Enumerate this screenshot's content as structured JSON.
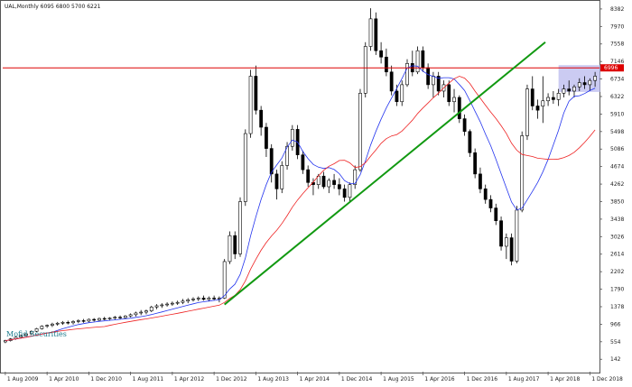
{
  "title": "UAL,Monthly  6095 6800 5700 6221",
  "brand": "Mofid Securities",
  "colors": {
    "bull": "#ffffff",
    "bear": "#000000",
    "wick": "#000000",
    "ma_blue": "#2233ee",
    "ma_red": "#ee2222",
    "trend": "#119911",
    "resistance": "#dd0000",
    "zone": "#b9b9ee",
    "brand": "#1a7a8c"
  },
  "chart_data": {
    "type": "candlestick",
    "y_ticks": [
      142,
      554,
      966,
      1378,
      1790,
      2202,
      2614,
      3026,
      3438,
      3850,
      4262,
      4674,
      5086,
      5498,
      5910,
      6322,
      6734,
      7146,
      7558,
      7970,
      8382
    ],
    "y_tick_labels": [
      "142",
      "554",
      "966",
      "1378",
      "1790",
      "2202",
      "2614",
      "3026",
      "3438",
      "3850",
      "4262",
      "4674",
      "5086",
      "5498",
      "5910",
      "6322",
      "6734",
      "7146",
      "7558",
      "7970",
      "8382"
    ],
    "ylim": [
      -150,
      8550
    ],
    "x_tick_labels": [
      "1 Aug 2009",
      "1 Apr 2010",
      "1 Dec 2010",
      "1 Aug 2011",
      "1 Apr 2012",
      "1 Dec 2012",
      "1 Aug 2013",
      "1 Apr 2014",
      "1 Dec 2014",
      "1 Aug 2015",
      "1 Apr 2016",
      "1 Dec 2016",
      "1 Aug 2017",
      "1 Apr 2018",
      "1 Dec 2018"
    ],
    "x_tick_index": [
      0,
      8,
      16,
      24,
      32,
      40,
      48,
      56,
      64,
      72,
      80,
      88,
      96,
      104,
      112
    ],
    "bar_count": 114,
    "resistance_level": 6996,
    "resistance_label": "6996",
    "zone": {
      "i0": 106,
      "i1": 114,
      "y0": 6430,
      "y1": 7060
    },
    "trendline": {
      "i0": 42,
      "y0": 1430,
      "i1": 127,
      "y1": 7600
    },
    "candles": [
      [
        550,
        600,
        520,
        580
      ],
      [
        580,
        640,
        560,
        620
      ],
      [
        620,
        680,
        600,
        660
      ],
      [
        660,
        720,
        640,
        700
      ],
      [
        700,
        760,
        680,
        740
      ],
      [
        740,
        820,
        720,
        800
      ],
      [
        800,
        880,
        780,
        860
      ],
      [
        860,
        940,
        840,
        920
      ],
      [
        920,
        960,
        880,
        940
      ],
      [
        940,
        1000,
        900,
        970
      ],
      [
        970,
        1020,
        930,
        990
      ],
      [
        990,
        1040,
        950,
        1010
      ],
      [
        1010,
        1050,
        960,
        1000
      ],
      [
        1000,
        1060,
        960,
        1030
      ],
      [
        1030,
        1080,
        990,
        1050
      ],
      [
        1050,
        1090,
        1000,
        1040
      ],
      [
        1040,
        1100,
        1010,
        1080
      ],
      [
        1080,
        1110,
        1030,
        1060
      ],
      [
        1060,
        1120,
        1030,
        1100
      ],
      [
        1100,
        1140,
        1060,
        1090
      ],
      [
        1090,
        1130,
        1050,
        1110
      ],
      [
        1110,
        1160,
        1070,
        1130
      ],
      [
        1130,
        1170,
        1090,
        1120
      ],
      [
        1120,
        1180,
        1100,
        1160
      ],
      [
        1160,
        1220,
        1130,
        1190
      ],
      [
        1190,
        1260,
        1150,
        1230
      ],
      [
        1230,
        1300,
        1180,
        1250
      ],
      [
        1250,
        1310,
        1200,
        1280
      ],
      [
        1280,
        1400,
        1250,
        1370
      ],
      [
        1370,
        1440,
        1320,
        1400
      ],
      [
        1400,
        1460,
        1350,
        1420
      ],
      [
        1420,
        1480,
        1380,
        1440
      ],
      [
        1440,
        1500,
        1400,
        1460
      ],
      [
        1460,
        1520,
        1420,
        1480
      ],
      [
        1480,
        1560,
        1440,
        1510
      ],
      [
        1510,
        1580,
        1460,
        1540
      ],
      [
        1540,
        1600,
        1500,
        1560
      ],
      [
        1560,
        1620,
        1510,
        1580
      ],
      [
        1580,
        1640,
        1520,
        1550
      ],
      [
        1550,
        1620,
        1500,
        1580
      ],
      [
        1580,
        1640,
        1530,
        1560
      ],
      [
        1560,
        1620,
        1480,
        1580
      ],
      [
        1580,
        2500,
        1560,
        2440
      ],
      [
        2440,
        3150,
        2380,
        3050
      ],
      [
        3050,
        3150,
        2500,
        2620
      ],
      [
        2620,
        3950,
        2550,
        3850
      ],
      [
        3850,
        5550,
        3750,
        5450
      ],
      [
        5450,
        6950,
        5350,
        6800
      ],
      [
        6800,
        7050,
        5900,
        6000
      ],
      [
        6000,
        6100,
        5400,
        5600
      ],
      [
        5600,
        5700,
        4900,
        5100
      ],
      [
        5100,
        5200,
        4300,
        4500
      ],
      [
        4500,
        4600,
        3900,
        4150
      ],
      [
        4150,
        4800,
        4050,
        4700
      ],
      [
        4700,
        5250,
        4600,
        5150
      ],
      [
        5150,
        5650,
        5050,
        5550
      ],
      [
        5550,
        5650,
        4850,
        4950
      ],
      [
        4950,
        5050,
        4500,
        4600
      ],
      [
        4600,
        4700,
        4200,
        4300
      ],
      [
        4300,
        4400,
        4000,
        4250
      ],
      [
        4250,
        4500,
        4150,
        4450
      ],
      [
        4450,
        4550,
        4150,
        4200
      ],
      [
        4200,
        4400,
        4050,
        4350
      ],
      [
        4350,
        4500,
        4150,
        4250
      ],
      [
        4250,
        4400,
        4000,
        4150
      ],
      [
        4150,
        4250,
        3850,
        3950
      ],
      [
        3950,
        4300,
        3850,
        4250
      ],
      [
        4250,
        4700,
        4150,
        4600
      ],
      [
        4600,
        6500,
        4550,
        6400
      ],
      [
        6400,
        7600,
        6300,
        7500
      ],
      [
        7500,
        8400,
        7400,
        8150
      ],
      [
        8150,
        8300,
        7300,
        7400
      ],
      [
        7400,
        7600,
        7100,
        7250
      ],
      [
        7250,
        7450,
        6800,
        6900
      ],
      [
        6900,
        7050,
        6350,
        6450
      ],
      [
        6450,
        6600,
        6100,
        6200
      ],
      [
        6200,
        6700,
        6100,
        6600
      ],
      [
        6600,
        7200,
        6550,
        7100
      ],
      [
        7100,
        7400,
        6800,
        6900
      ],
      [
        6900,
        7500,
        6850,
        7400
      ],
      [
        7400,
        7500,
        6900,
        7000
      ],
      [
        7000,
        7100,
        6500,
        6600
      ],
      [
        6600,
        6900,
        6300,
        6800
      ],
      [
        6800,
        6900,
        6350,
        6450
      ],
      [
        6450,
        6700,
        6300,
        6600
      ],
      [
        6600,
        6700,
        6100,
        6200
      ],
      [
        6200,
        6500,
        5950,
        6300
      ],
      [
        6300,
        6350,
        5700,
        5800
      ],
      [
        5800,
        5900,
        5400,
        5500
      ],
      [
        5500,
        5550,
        4900,
        5000
      ],
      [
        5000,
        5100,
        4400,
        4500
      ],
      [
        4500,
        4650,
        4050,
        4150
      ],
      [
        4150,
        4250,
        3800,
        3900
      ],
      [
        3900,
        4000,
        3600,
        3700
      ],
      [
        3700,
        3800,
        3300,
        3400
      ],
      [
        3400,
        3500,
        2700,
        2800
      ],
      [
        2800,
        3100,
        2500,
        3000
      ],
      [
        3000,
        3100,
        2350,
        2450
      ],
      [
        2450,
        3750,
        2400,
        3650
      ],
      [
        3650,
        5500,
        3600,
        5400
      ],
      [
        5400,
        6600,
        5300,
        6500
      ],
      [
        6500,
        6800,
        6000,
        6100
      ],
      [
        6100,
        6250,
        5800,
        6000
      ],
      [
        6095,
        6800,
        5700,
        6221
      ],
      [
        6221,
        6400,
        6100,
        6300
      ],
      [
        6300,
        6450,
        6150,
        6250
      ],
      [
        6250,
        6500,
        6100,
        6400
      ],
      [
        6400,
        6600,
        6300,
        6500
      ],
      [
        6500,
        6700,
        6350,
        6450
      ],
      [
        6450,
        6600,
        6300,
        6550
      ],
      [
        6550,
        6750,
        6450,
        6650
      ],
      [
        6650,
        6800,
        6500,
        6600
      ],
      [
        6600,
        6750,
        6450,
        6700
      ],
      [
        6700,
        6900,
        6550,
        6800
      ]
    ]
  }
}
